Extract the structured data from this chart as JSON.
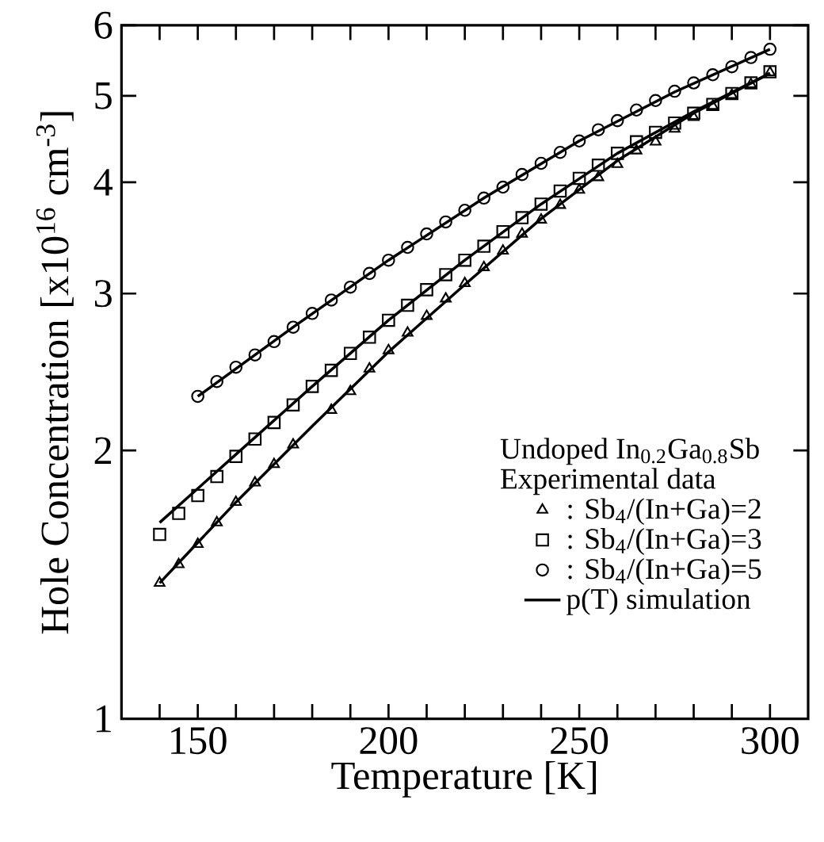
{
  "chart_data": {
    "type": "scatter",
    "xlabel": "Temperature  [K]",
    "ylabel": "Hole Concentration  [x10$^{16}$ cm$^{-3}$]",
    "legend_title": "Undoped In$_{0.2}$Ga$_{0.8}$Sb",
    "annotations": [
      "Experimental data"
    ],
    "xlim": [
      130,
      310
    ],
    "ylim": [
      1,
      6
    ],
    "log": "y",
    "legend": "bottom right",
    "xticks": [
      {
        "value": 140,
        "label": null
      },
      150,
      {
        "value": 160,
        "label": null
      },
      {
        "value": 170,
        "label": null
      },
      {
        "value": 180,
        "label": null
      },
      {
        "value": 190,
        "label": null
      },
      200,
      {
        "value": 210,
        "label": null
      },
      {
        "value": 220,
        "label": null
      },
      {
        "value": 230,
        "label": null
      },
      {
        "value": 240,
        "label": null
      },
      250,
      {
        "value": 260,
        "label": null
      },
      {
        "value": 270,
        "label": null
      },
      {
        "value": 280,
        "label": null
      },
      {
        "value": 290,
        "label": null
      },
      300
    ],
    "yticks": [
      1,
      2,
      3,
      4,
      5,
      6
    ],
    "series": [
      {
        "name": ": Sb$_{4}$/(In+Ga)=2",
        "marker": "triangle",
        "color": "#000000",
        "x": [
          140,
          145,
          150,
          155,
          160,
          165,
          170,
          175,
          185,
          190,
          195,
          200,
          205,
          210,
          215,
          220,
          225,
          230,
          235,
          240,
          245,
          250,
          255,
          260,
          265,
          270,
          275,
          280,
          285,
          290,
          295,
          300
        ],
        "values": [
          1.42,
          1.49,
          1.57,
          1.66,
          1.75,
          1.84,
          1.93,
          2.03,
          2.22,
          2.33,
          2.47,
          2.59,
          2.71,
          2.83,
          2.96,
          3.08,
          3.21,
          3.35,
          3.5,
          3.63,
          3.77,
          3.92,
          4.05,
          4.19,
          4.34,
          4.44,
          4.59,
          4.73,
          4.87,
          5.01,
          5.15,
          5.31
        ]
      },
      {
        "name": ": Sb$_{4}$/(In+Ga)=3",
        "marker": "square",
        "color": "#000000",
        "x": [
          140,
          145,
          150,
          155,
          160,
          165,
          170,
          175,
          180,
          185,
          190,
          195,
          200,
          205,
          210,
          215,
          220,
          225,
          230,
          235,
          240,
          245,
          250,
          255,
          260,
          265,
          270,
          275,
          280,
          285,
          290,
          295,
          300
        ],
        "values": [
          1.61,
          1.7,
          1.78,
          1.87,
          1.97,
          2.06,
          2.15,
          2.25,
          2.36,
          2.46,
          2.57,
          2.68,
          2.8,
          2.91,
          3.03,
          3.15,
          3.27,
          3.39,
          3.52,
          3.65,
          3.78,
          3.91,
          4.04,
          4.18,
          4.31,
          4.44,
          4.55,
          4.66,
          4.78,
          4.89,
          5.03,
          5.17,
          5.32
        ]
      },
      {
        "name": ": Sb$_{4}$/(In+Ga)=5",
        "marker": "circle",
        "color": "#000000",
        "x": [
          150,
          155,
          160,
          165,
          170,
          175,
          180,
          185,
          190,
          195,
          200,
          205,
          210,
          215,
          220,
          225,
          230,
          235,
          240,
          245,
          250,
          255,
          260,
          265,
          270,
          275,
          280,
          285,
          290,
          295,
          300
        ],
        "values": [
          2.3,
          2.39,
          2.48,
          2.56,
          2.65,
          2.75,
          2.85,
          2.95,
          3.05,
          3.16,
          3.27,
          3.38,
          3.5,
          3.61,
          3.72,
          3.84,
          3.95,
          4.08,
          4.2,
          4.32,
          4.45,
          4.58,
          4.69,
          4.82,
          4.94,
          5.06,
          5.17,
          5.28,
          5.39,
          5.52,
          5.64
        ]
      },
      {
        "name": "p(T) simulation",
        "type": "line",
        "marker": "none",
        "color": "#000000",
        "x": [
          140,
          160,
          180,
          200,
          220,
          240,
          260,
          280,
          300
        ],
        "values": [
          1.42,
          1.75,
          2.13,
          2.58,
          3.07,
          3.64,
          4.23,
          4.78,
          5.3
        ]
      },
      {
        "type": "line",
        "marker": "none",
        "color": "#000000",
        "x": [
          140,
          160,
          180,
          200,
          220,
          240,
          260,
          280,
          300
        ],
        "values": [
          1.66,
          1.98,
          2.36,
          2.8,
          3.27,
          3.78,
          4.31,
          4.8,
          5.3
        ]
      },
      {
        "type": "line",
        "marker": "none",
        "color": "#000000",
        "x": [
          150,
          175,
          200,
          225,
          250,
          275,
          300
        ],
        "values": [
          2.3,
          2.75,
          3.27,
          3.84,
          4.45,
          5.05,
          5.64
        ]
      }
    ]
  }
}
